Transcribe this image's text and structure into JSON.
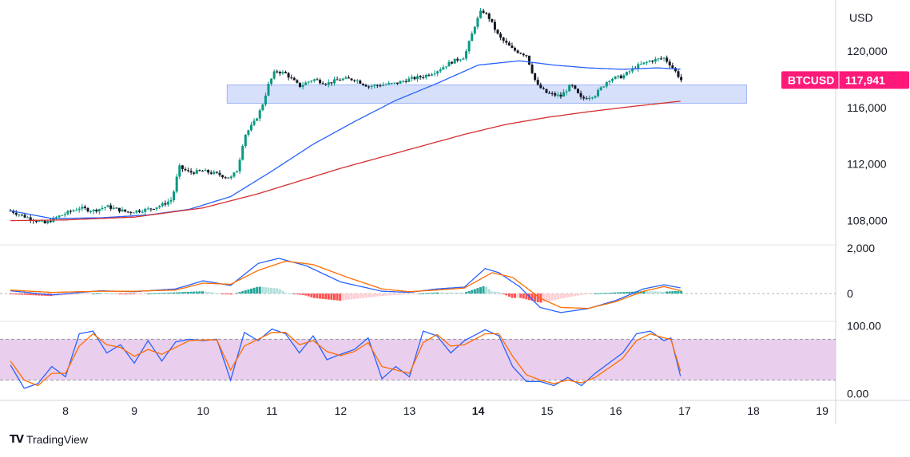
{
  "chart_data": {
    "type": "candlestick",
    "symbol": "BTCUSD",
    "last_price": "117,941",
    "currency": "USD",
    "price_axis": {
      "ticks": [
        {
          "v": 108000,
          "label": "108,000"
        },
        {
          "v": 112000,
          "label": "112,000"
        },
        {
          "v": 116000,
          "label": "116,000"
        },
        {
          "v": 120000,
          "label": "120,000"
        }
      ],
      "range": [
        106400,
        123600
      ]
    },
    "time_axis": {
      "labels": [
        "8",
        "9",
        "10",
        "11",
        "12",
        "13",
        "14",
        "15",
        "16",
        "17",
        "18",
        "19"
      ],
      "bold_label": "14",
      "range_days": [
        7.2,
        19.5
      ]
    },
    "support_zone": {
      "x_from": 10.35,
      "x_to": 17.9,
      "y_from": 116300,
      "y_to": 117600
    },
    "price_anchors": [
      [
        7.2,
        108700
      ],
      [
        7.4,
        108300
      ],
      [
        7.7,
        107800
      ],
      [
        7.9,
        108300
      ],
      [
        8.2,
        108900
      ],
      [
        8.4,
        108700
      ],
      [
        8.6,
        109000
      ],
      [
        8.9,
        108600
      ],
      [
        9.2,
        108800
      ],
      [
        9.4,
        109100
      ],
      [
        9.55,
        109500
      ],
      [
        9.65,
        111800
      ],
      [
        9.8,
        111400
      ],
      [
        10.0,
        111500
      ],
      [
        10.2,
        111300
      ],
      [
        10.4,
        111000
      ],
      [
        10.5,
        111600
      ],
      [
        10.6,
        114000
      ],
      [
        10.75,
        115000
      ],
      [
        10.85,
        116000
      ],
      [
        10.95,
        117600
      ],
      [
        11.05,
        118600
      ],
      [
        11.2,
        118400
      ],
      [
        11.4,
        117500
      ],
      [
        11.6,
        118000
      ],
      [
        11.8,
        117700
      ],
      [
        12.0,
        118000
      ],
      [
        12.2,
        118000
      ],
      [
        12.4,
        117500
      ],
      [
        12.6,
        117600
      ],
      [
        12.8,
        117700
      ],
      [
        13.0,
        118000
      ],
      [
        13.2,
        118200
      ],
      [
        13.4,
        118600
      ],
      [
        13.6,
        119200
      ],
      [
        13.8,
        119600
      ],
      [
        13.95,
        121800
      ],
      [
        14.05,
        122900
      ],
      [
        14.15,
        122400
      ],
      [
        14.3,
        121000
      ],
      [
        14.5,
        120100
      ],
      [
        14.7,
        119700
      ],
      [
        14.85,
        117600
      ],
      [
        15.0,
        117000
      ],
      [
        15.2,
        116800
      ],
      [
        15.35,
        117600
      ],
      [
        15.5,
        116600
      ],
      [
        15.7,
        116900
      ],
      [
        15.9,
        118000
      ],
      [
        16.1,
        118200
      ],
      [
        16.3,
        118900
      ],
      [
        16.5,
        119300
      ],
      [
        16.7,
        119500
      ],
      [
        16.8,
        119000
      ],
      [
        16.9,
        118300
      ],
      [
        16.95,
        117941
      ]
    ],
    "series": [
      {
        "name": "",
        "color": "#2962ff",
        "points": [
          [
            7.2,
            108700
          ],
          [
            7.8,
            108150
          ],
          [
            8.5,
            108200
          ],
          [
            9.2,
            108400
          ],
          [
            9.8,
            108800
          ],
          [
            10.4,
            109700
          ],
          [
            11.0,
            111500
          ],
          [
            11.6,
            113400
          ],
          [
            12.2,
            115000
          ],
          [
            12.8,
            116500
          ],
          [
            13.4,
            117700
          ],
          [
            14.0,
            119000
          ],
          [
            14.6,
            119300
          ],
          [
            15.1,
            119000
          ],
          [
            15.6,
            118800
          ],
          [
            16.1,
            118700
          ],
          [
            16.6,
            118800
          ],
          [
            16.95,
            118700
          ]
        ]
      },
      {
        "name": "",
        "color": "#d32f2f",
        "points": [
          [
            7.2,
            108000
          ],
          [
            8.0,
            108050
          ],
          [
            9.0,
            108250
          ],
          [
            10.0,
            108900
          ],
          [
            10.8,
            109900
          ],
          [
            11.4,
            110800
          ],
          [
            12.0,
            111700
          ],
          [
            12.6,
            112500
          ],
          [
            13.2,
            113300
          ],
          [
            13.8,
            114100
          ],
          [
            14.4,
            114800
          ],
          [
            15.0,
            115300
          ],
          [
            15.6,
            115700
          ],
          [
            16.2,
            116050
          ],
          [
            16.95,
            116450
          ]
        ]
      }
    ],
    "macd": {
      "ticks": [
        {
          "v": 0,
          "label": "0"
        },
        {
          "v": 2000,
          "label": "2,000"
        }
      ],
      "range": [
        -1100,
        2000
      ],
      "macd_color": "#2962ff",
      "signal_color": "#ff6d00",
      "macd_points": [
        [
          7.2,
          120
        ],
        [
          7.8,
          -60
        ],
        [
          8.5,
          120
        ],
        [
          9.0,
          80
        ],
        [
          9.6,
          200
        ],
        [
          10.0,
          550
        ],
        [
          10.4,
          350
        ],
        [
          10.8,
          1300
        ],
        [
          11.1,
          1520
        ],
        [
          11.5,
          1200
        ],
        [
          12.0,
          500
        ],
        [
          12.6,
          100
        ],
        [
          13.0,
          50
        ],
        [
          13.4,
          200
        ],
        [
          13.8,
          280
        ],
        [
          14.1,
          1080
        ],
        [
          14.3,
          900
        ],
        [
          14.6,
          300
        ],
        [
          14.9,
          -600
        ],
        [
          15.2,
          -820
        ],
        [
          15.6,
          -650
        ],
        [
          16.0,
          -300
        ],
        [
          16.4,
          200
        ],
        [
          16.7,
          380
        ],
        [
          16.95,
          240
        ]
      ],
      "signal_points": [
        [
          7.2,
          150
        ],
        [
          7.8,
          50
        ],
        [
          8.5,
          100
        ],
        [
          9.0,
          100
        ],
        [
          9.6,
          150
        ],
        [
          10.0,
          450
        ],
        [
          10.4,
          400
        ],
        [
          10.8,
          1000
        ],
        [
          11.2,
          1400
        ],
        [
          11.6,
          1250
        ],
        [
          12.1,
          700
        ],
        [
          12.6,
          200
        ],
        [
          13.0,
          80
        ],
        [
          13.4,
          150
        ],
        [
          13.8,
          240
        ],
        [
          14.2,
          900
        ],
        [
          14.5,
          700
        ],
        [
          14.9,
          -200
        ],
        [
          15.2,
          -600
        ],
        [
          15.6,
          -640
        ],
        [
          16.0,
          -350
        ],
        [
          16.4,
          100
        ],
        [
          16.7,
          300
        ],
        [
          16.95,
          120
        ]
      ]
    },
    "stoch_rsi": {
      "ticks": [
        {
          "v": 100,
          "label": "100.00"
        },
        {
          "v": 0,
          "label": "0.00"
        }
      ],
      "range": [
        -5,
        105
      ],
      "band": [
        20,
        80
      ],
      "k_color": "#2962ff",
      "d_color": "#ff6d00",
      "band_color": "#e1bee7",
      "k_points": [
        [
          7.2,
          42
        ],
        [
          7.4,
          8
        ],
        [
          7.6,
          15
        ],
        [
          7.8,
          40
        ],
        [
          8.0,
          25
        ],
        [
          8.2,
          88
        ],
        [
          8.4,
          92
        ],
        [
          8.6,
          60
        ],
        [
          8.8,
          72
        ],
        [
          9.0,
          45
        ],
        [
          9.2,
          78
        ],
        [
          9.4,
          48
        ],
        [
          9.6,
          76
        ],
        [
          9.8,
          80
        ],
        [
          10.0,
          78
        ],
        [
          10.2,
          80
        ],
        [
          10.4,
          20
        ],
        [
          10.6,
          90
        ],
        [
          10.8,
          78
        ],
        [
          11.0,
          95
        ],
        [
          11.2,
          88
        ],
        [
          11.4,
          60
        ],
        [
          11.6,
          85
        ],
        [
          11.8,
          50
        ],
        [
          12.0,
          58
        ],
        [
          12.2,
          65
        ],
        [
          12.4,
          82
        ],
        [
          12.6,
          22
        ],
        [
          12.8,
          40
        ],
        [
          13.0,
          25
        ],
        [
          13.2,
          92
        ],
        [
          13.4,
          85
        ],
        [
          13.6,
          60
        ],
        [
          13.8,
          78
        ],
        [
          14.1,
          94
        ],
        [
          14.3,
          85
        ],
        [
          14.5,
          40
        ],
        [
          14.7,
          18
        ],
        [
          14.9,
          18
        ],
        [
          15.1,
          12
        ],
        [
          15.3,
          24
        ],
        [
          15.5,
          12
        ],
        [
          15.7,
          30
        ],
        [
          15.9,
          45
        ],
        [
          16.1,
          60
        ],
        [
          16.3,
          88
        ],
        [
          16.5,
          92
        ],
        [
          16.7,
          78
        ],
        [
          16.8,
          82
        ],
        [
          16.95,
          22
        ]
      ],
      "d_points": [
        [
          7.2,
          48
        ],
        [
          7.4,
          20
        ],
        [
          7.6,
          12
        ],
        [
          7.8,
          30
        ],
        [
          8.0,
          30
        ],
        [
          8.2,
          70
        ],
        [
          8.4,
          88
        ],
        [
          8.6,
          72
        ],
        [
          8.8,
          68
        ],
        [
          9.0,
          55
        ],
        [
          9.2,
          65
        ],
        [
          9.4,
          58
        ],
        [
          9.6,
          68
        ],
        [
          9.8,
          78
        ],
        [
          10.0,
          79
        ],
        [
          10.2,
          79
        ],
        [
          10.4,
          35
        ],
        [
          10.6,
          70
        ],
        [
          10.8,
          80
        ],
        [
          11.0,
          90
        ],
        [
          11.2,
          90
        ],
        [
          11.4,
          72
        ],
        [
          11.6,
          78
        ],
        [
          11.8,
          62
        ],
        [
          12.0,
          56
        ],
        [
          12.2,
          62
        ],
        [
          12.4,
          75
        ],
        [
          12.6,
          40
        ],
        [
          12.8,
          35
        ],
        [
          13.0,
          30
        ],
        [
          13.2,
          75
        ],
        [
          13.4,
          87
        ],
        [
          13.6,
          70
        ],
        [
          13.8,
          72
        ],
        [
          14.1,
          88
        ],
        [
          14.3,
          88
        ],
        [
          14.5,
          55
        ],
        [
          14.7,
          28
        ],
        [
          14.9,
          20
        ],
        [
          15.1,
          15
        ],
        [
          15.3,
          20
        ],
        [
          15.5,
          16
        ],
        [
          15.7,
          24
        ],
        [
          15.9,
          38
        ],
        [
          16.1,
          52
        ],
        [
          16.3,
          78
        ],
        [
          16.5,
          88
        ],
        [
          16.7,
          82
        ],
        [
          16.8,
          80
        ],
        [
          16.95,
          30
        ]
      ]
    }
  },
  "brand": {
    "logo": "TV",
    "name": "TradingView"
  }
}
